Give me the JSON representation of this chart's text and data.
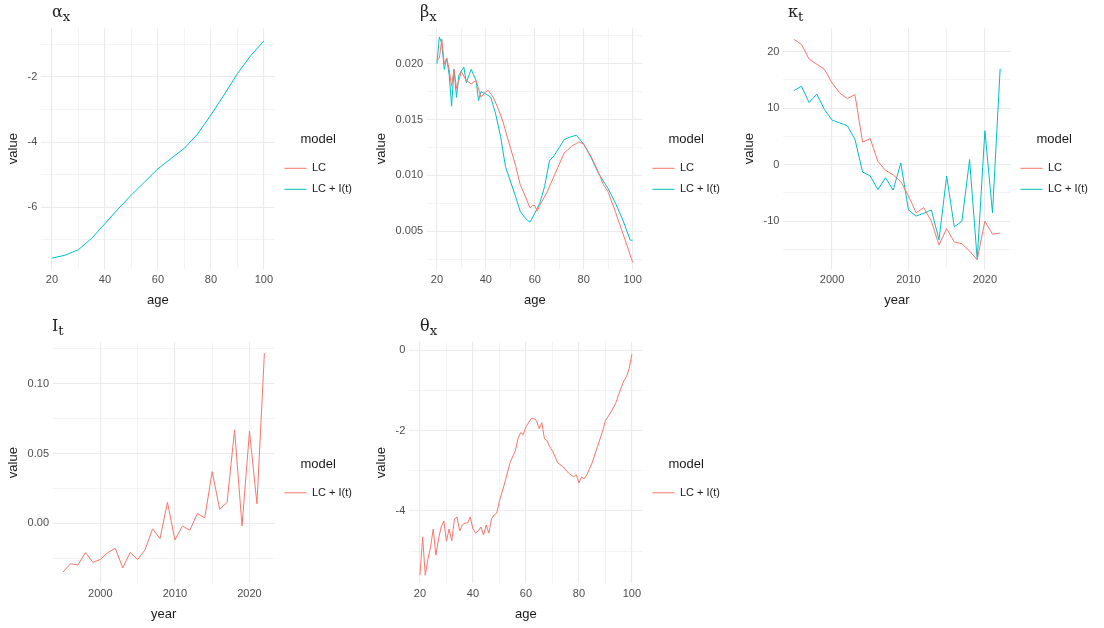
{
  "chart_data": [
    {
      "type": "line",
      "title": "α$_{x}$",
      "xlabel": "age",
      "ylabel": "value",
      "legend_title": "model",
      "legend": "right",
      "grid": true,
      "xlim": [
        16,
        104
      ],
      "xticks": [
        20,
        {
          "value": 30,
          "label": null
        },
        40,
        {
          "value": 50,
          "label": null
        },
        60,
        {
          "value": 70,
          "label": null
        },
        80,
        {
          "value": 90,
          "label": null
        },
        100
      ],
      "ylim": [
        -7.9,
        -0.5
      ],
      "yticks": [
        {
          "value": -7,
          "label": null
        },
        -6,
        {
          "value": -5,
          "label": null
        },
        -4,
        {
          "value": -3,
          "label": null
        },
        -2,
        {
          "value": -1,
          "label": null
        }
      ],
      "series": [
        {
          "name": "LC",
          "color": "#f8766d"
        },
        {
          "name": "LC + I(t)",
          "color": "#00bfc4",
          "x": [
            20,
            25,
            30,
            35,
            40,
            45,
            50,
            55,
            60,
            65,
            70,
            75,
            80,
            85,
            90,
            95,
            100
          ],
          "values": [
            -7.56,
            -7.47,
            -7.3,
            -6.95,
            -6.5,
            -6.05,
            -5.62,
            -5.22,
            -4.82,
            -4.5,
            -4.19,
            -3.75,
            -3.17,
            -2.55,
            -1.9,
            -1.35,
            -0.9
          ]
        }
      ]
    },
    {
      "type": "line",
      "title": "β$_{x}$",
      "xlabel": "age",
      "ylabel": "value",
      "legend_title": "model",
      "legend": "right",
      "grid": true,
      "xlim": [
        16,
        104
      ],
      "xticks": [
        20,
        {
          "value": 30,
          "label": null
        },
        40,
        {
          "value": 50,
          "label": null
        },
        60,
        {
          "value": 70,
          "label": null
        },
        80,
        {
          "value": 90,
          "label": null
        },
        100
      ],
      "ylim": [
        0.0016,
        0.0232
      ],
      "yticks": [
        {
          "value": 0.0025,
          "label": null
        },
        {
          "value": 0.005,
          "label": "0.005"
        },
        {
          "value": 0.0075,
          "label": null
        },
        {
          "value": 0.01,
          "label": "0.010"
        },
        {
          "value": 0.0125,
          "label": null
        },
        {
          "value": 0.015,
          "label": "0.015"
        },
        {
          "value": 0.0175,
          "label": null
        },
        {
          "value": 0.02,
          "label": "0.020"
        },
        {
          "value": 0.0225,
          "label": null
        }
      ],
      "series": [
        {
          "name": "LC",
          "color": "#f8766d",
          "x": [
            20,
            21,
            22,
            23,
            24,
            25,
            26,
            27,
            28,
            30,
            32,
            34,
            36,
            38,
            40,
            41,
            43,
            45,
            47,
            50,
            52,
            54,
            56,
            58,
            59,
            60,
            61,
            62,
            65,
            68,
            70,
            72,
            75,
            78,
            80,
            83,
            86,
            88,
            90,
            93,
            96,
            98,
            100
          ],
          "values": [
            0.0203,
            0.0205,
            0.0222,
            0.02,
            0.0205,
            0.0195,
            0.018,
            0.0195,
            0.0178,
            0.0193,
            0.0185,
            0.0182,
            0.0185,
            0.017,
            0.0175,
            0.0176,
            0.017,
            0.016,
            0.0148,
            0.0125,
            0.011,
            0.0092,
            0.0082,
            0.0071,
            0.0073,
            0.0073,
            0.0068,
            0.0073,
            0.0085,
            0.01,
            0.011,
            0.012,
            0.0126,
            0.013,
            0.0128,
            0.0117,
            0.0103,
            0.0092,
            0.0085,
            0.0067,
            0.0048,
            0.0035,
            0.0022
          ]
        },
        {
          "name": "LC + I(t)",
          "color": "#00bfc4",
          "x": [
            20,
            21,
            22,
            23,
            24,
            25,
            26,
            27,
            28,
            29,
            31,
            32,
            34,
            36,
            37,
            38,
            40,
            42,
            44,
            46,
            48,
            50,
            52,
            54,
            56,
            58,
            60,
            62,
            64,
            66,
            68,
            70,
            72,
            74,
            77,
            80,
            83,
            86,
            88,
            90,
            93,
            96,
            99,
            100
          ],
          "values": [
            0.02,
            0.0224,
            0.0218,
            0.0195,
            0.0205,
            0.019,
            0.0162,
            0.0195,
            0.017,
            0.019,
            0.0197,
            0.0183,
            0.0195,
            0.0185,
            0.0167,
            0.0175,
            0.0173,
            0.017,
            0.0155,
            0.0135,
            0.0108,
            0.0095,
            0.0082,
            0.0068,
            0.0062,
            0.0058,
            0.0066,
            0.0075,
            0.009,
            0.0113,
            0.0118,
            0.0125,
            0.0132,
            0.0134,
            0.0136,
            0.0128,
            0.0116,
            0.0102,
            0.0095,
            0.0088,
            0.0075,
            0.006,
            0.0042,
            0.0042
          ]
        }
      ]
    },
    {
      "type": "line",
      "title": "κ$_{t}$",
      "xlabel": "year",
      "ylabel": "value",
      "legend_title": "model",
      "legend": "right",
      "grid": true,
      "xlim": [
        1993.65,
        2023.35
      ],
      "xticks": [
        2000,
        {
          "value": 2005,
          "label": null
        },
        2010,
        {
          "value": 2015,
          "label": null
        },
        2020
      ],
      "ylim": [
        -18.5,
        24.2
      ],
      "yticks": [
        {
          "value": -15,
          "label": null
        },
        -10,
        {
          "value": -5,
          "label": null
        },
        0,
        {
          "value": 5,
          "label": null
        },
        10,
        {
          "value": 15,
          "label": null
        },
        20
      ],
      "series": [
        {
          "name": "LC",
          "color": "#f8766d",
          "x": [
            1995,
            1996,
            1997,
            1998,
            1999,
            2000,
            2001,
            2002,
            2003,
            2004,
            2005,
            2006,
            2007,
            2008,
            2009,
            2010,
            2011,
            2012,
            2013,
            2014,
            2015,
            2016,
            2017,
            2018,
            2019,
            2020,
            2021,
            2022
          ],
          "values": [
            22.2,
            21.3,
            18.7,
            17.8,
            16.9,
            14.5,
            12.7,
            11.7,
            12.4,
            4.0,
            4.6,
            0.6,
            -1.0,
            -1.8,
            -3.0,
            -5.5,
            -8.5,
            -7.6,
            -10.0,
            -14.2,
            -11.3,
            -13.7,
            -14.0,
            -15.3,
            -16.8,
            -10.0,
            -12.3,
            -12.1
          ]
        },
        {
          "name": "LC + I(t)",
          "color": "#00bfc4",
          "x": [
            1995,
            1996,
            1997,
            1998,
            1999,
            2000,
            2001,
            2002,
            2003,
            2004,
            2005,
            2006,
            2007,
            2008,
            2009,
            2010,
            2011,
            2012,
            2013,
            2014,
            2015,
            2016,
            2017,
            2018,
            2019,
            2020,
            2021,
            2022
          ],
          "values": [
            13.1,
            13.9,
            11.0,
            12.5,
            9.8,
            7.9,
            7.4,
            6.9,
            4.5,
            -1.3,
            -2.0,
            -4.4,
            -2.3,
            -4.5,
            0.3,
            -8.0,
            -9.1,
            -8.6,
            -8.0,
            -13.3,
            -2.0,
            -11.0,
            -10.0,
            0.9,
            -16.8,
            6.0,
            -8.5,
            17.0
          ]
        }
      ]
    },
    {
      "type": "line",
      "title": "I$_{t}$",
      "xlabel": "year",
      "ylabel": "value",
      "legend_title": "model",
      "legend": "right",
      "grid": true,
      "xlim": [
        1993.65,
        2023.35
      ],
      "xticks": [
        2000,
        {
          "value": 2005,
          "label": null
        },
        2010,
        {
          "value": 2015,
          "label": null
        },
        2020
      ],
      "ylim": [
        -0.043,
        0.13
      ],
      "yticks": [
        {
          "value": -0.025,
          "label": null
        },
        {
          "value": 0,
          "label": "0.00"
        },
        {
          "value": 0.025,
          "label": null
        },
        {
          "value": 0.05,
          "label": "0.05"
        },
        {
          "value": 0.075,
          "label": null
        },
        {
          "value": 0.1,
          "label": "0.10"
        },
        {
          "value": 0.125,
          "label": null
        }
      ],
      "series": [
        {
          "name": "LC + I(t)",
          "color": "#f8766d",
          "x": [
            1995,
            1996,
            1997,
            1998,
            1999,
            2000,
            2001,
            2002,
            2003,
            2004,
            2005,
            2006,
            2007,
            2008,
            2009,
            2010,
            2011,
            2012,
            2013,
            2014,
            2015,
            2016,
            2017,
            2018,
            2019,
            2020,
            2021,
            2022
          ],
          "values": [
            -0.035,
            -0.029,
            -0.03,
            -0.021,
            -0.028,
            -0.026,
            -0.021,
            -0.018,
            -0.032,
            -0.021,
            -0.026,
            -0.019,
            -0.004,
            -0.011,
            0.015,
            -0.012,
            -0.002,
            -0.005,
            0.007,
            0.004,
            0.037,
            0.01,
            0.015,
            0.067,
            -0.002,
            0.066,
            0.014,
            0.122
          ]
        }
      ]
    },
    {
      "type": "line",
      "title": "θ$_{x}$",
      "xlabel": "age",
      "ylabel": "value",
      "legend_title": "model",
      "legend": "right",
      "grid": true,
      "xlim": [
        16,
        104
      ],
      "xticks": [
        20,
        {
          "value": 30,
          "label": null
        },
        40,
        {
          "value": 50,
          "label": null
        },
        60,
        {
          "value": 70,
          "label": null
        },
        80,
        {
          "value": 90,
          "label": null
        },
        100
      ],
      "ylim": [
        -5.8,
        0.21
      ],
      "yticks": [
        {
          "value": -5,
          "label": null
        },
        -4,
        {
          "value": -3,
          "label": null
        },
        -2,
        {
          "value": -1,
          "label": null
        },
        0
      ],
      "series": [
        {
          "name": "LC + I(t)",
          "color": "#f8766d",
          "x": [
            20,
            21,
            22,
            23,
            24,
            25,
            26,
            27,
            28,
            29,
            30,
            31,
            32,
            33,
            34,
            35,
            36,
            37,
            38,
            39,
            40,
            41,
            42,
            43,
            44,
            45,
            46,
            47,
            48,
            49,
            50,
            52,
            54,
            56,
            57,
            58,
            59,
            60,
            62,
            63,
            64,
            65,
            66,
            67,
            68,
            69,
            70,
            72,
            74,
            76,
            78,
            79,
            80,
            81,
            82,
            83,
            85,
            87,
            89,
            90,
            92,
            94,
            95,
            97,
            98,
            99,
            100
          ],
          "values": [
            -5.6,
            -4.65,
            -5.6,
            -5.2,
            -4.9,
            -4.45,
            -5.1,
            -4.7,
            -4.4,
            -4.25,
            -4.75,
            -4.45,
            -4.75,
            -4.2,
            -4.15,
            -4.5,
            -4.35,
            -4.3,
            -4.3,
            -4.15,
            -4.45,
            -4.55,
            -4.5,
            -4.4,
            -4.6,
            -4.35,
            -4.55,
            -4.2,
            -4.1,
            -4.05,
            -3.75,
            -3.3,
            -2.8,
            -2.5,
            -2.2,
            -2.05,
            -2.1,
            -1.9,
            -1.7,
            -1.7,
            -1.75,
            -1.95,
            -1.8,
            -2.2,
            -2.25,
            -2.4,
            -2.5,
            -2.8,
            -2.9,
            -3.05,
            -3.15,
            -3.1,
            -3.3,
            -3.15,
            -3.2,
            -3.1,
            -2.8,
            -2.4,
            -2.0,
            -1.75,
            -1.55,
            -1.3,
            -1.1,
            -0.75,
            -0.65,
            -0.45,
            -0.1
          ]
        }
      ]
    }
  ]
}
